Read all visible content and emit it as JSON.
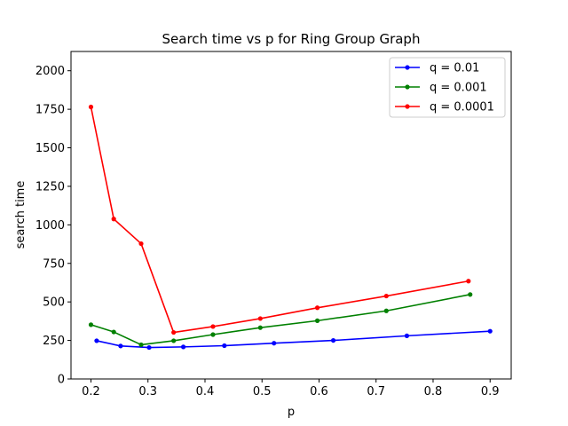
{
  "chart_data": {
    "type": "line",
    "title": "Search time vs p for Ring Group Graph",
    "xlabel": "p",
    "ylabel": "search time",
    "xlim": [
      0.165,
      0.937
    ],
    "ylim": [
      0,
      2125
    ],
    "xticks": [
      0.2,
      0.3,
      0.4,
      0.5,
      0.6,
      0.7,
      0.8,
      0.9
    ],
    "xtick_labels": [
      "0.2",
      "0.3",
      "0.4",
      "0.5",
      "0.6",
      "0.7",
      "0.8",
      "0.9"
    ],
    "yticks": [
      0,
      250,
      500,
      750,
      1000,
      1250,
      1500,
      1750,
      2000
    ],
    "ytick_labels": [
      "0",
      "250",
      "500",
      "750",
      "1000",
      "1250",
      "1500",
      "1750",
      "2000"
    ],
    "grid": false,
    "legend_position": "top-right",
    "series": [
      {
        "name": "q = 0.01",
        "color": "#0000ff",
        "x": [
          0.21,
          0.252,
          0.302,
          0.362,
          0.434,
          0.521,
          0.625,
          0.754,
          0.9
        ],
        "y": [
          248,
          214,
          204,
          208,
          216,
          232,
          250,
          280,
          310
        ]
      },
      {
        "name": "q = 0.001",
        "color": "#008000",
        "x": [
          0.2,
          0.24,
          0.288,
          0.345,
          0.414,
          0.497,
          0.597,
          0.718,
          0.865
        ],
        "y": [
          352,
          305,
          222,
          248,
          288,
          333,
          378,
          442,
          548
        ]
      },
      {
        "name": "q = 0.0001",
        "color": "#ff0000",
        "x": [
          0.2,
          0.24,
          0.288,
          0.345,
          0.414,
          0.497,
          0.597,
          0.718,
          0.862
        ],
        "y": [
          1765,
          1038,
          878,
          302,
          340,
          392,
          462,
          538,
          635
        ]
      }
    ]
  }
}
